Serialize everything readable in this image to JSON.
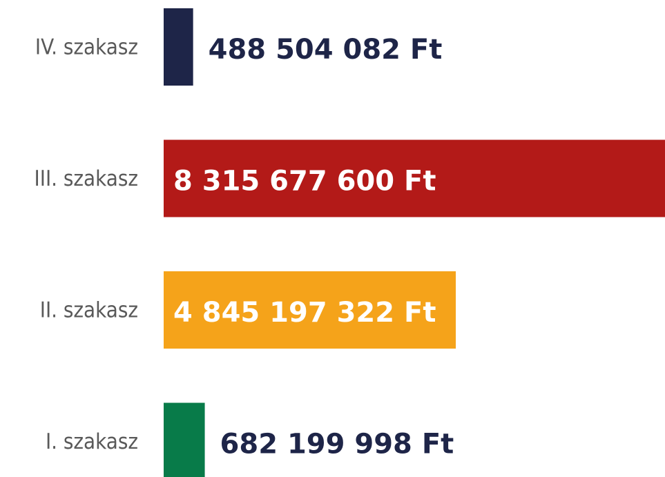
{
  "chart_data": {
    "type": "hbar",
    "categories": [
      "IV. szakasz",
      "III. szakasz",
      "II. szakasz",
      "I. szakasz"
    ],
    "values": [
      488504082,
      8315677600,
      4845197322,
      682199998
    ],
    "value_labels": [
      "488 504 082 Ft",
      "8 315 677 600 Ft",
      "4 845 197 322 Ft",
      "682 199 998 Ft"
    ],
    "colors": [
      "#1e2548",
      "#b31a18",
      "#f5a31a",
      "#087b49"
    ],
    "xlim": [
      0,
      8315677600
    ]
  }
}
